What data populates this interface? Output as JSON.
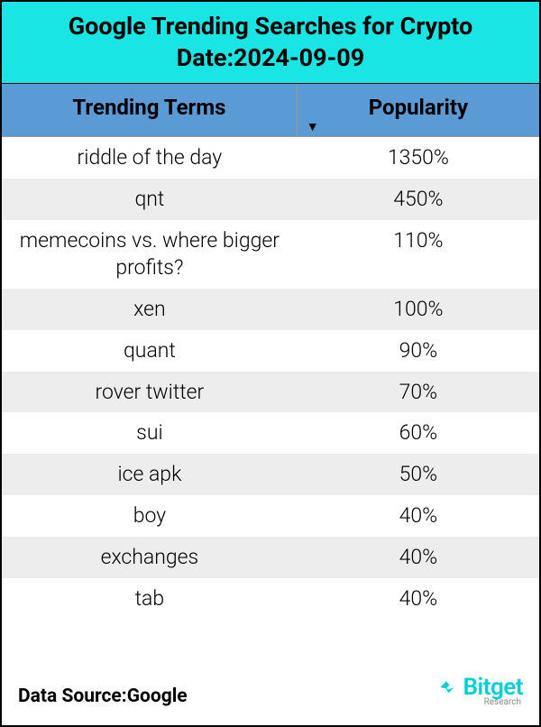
{
  "title": {
    "line1": "Google Trending Searches for Crypto",
    "line2": "Date:2024-09-09"
  },
  "colors": {
    "title_bg": "#1ae5e5",
    "header_bg": "#5b9bd5",
    "row_even_bg": "#ffffff",
    "row_odd_bg": "#ededed",
    "logo_color": "#00cfd6",
    "border": "#000000"
  },
  "columns": {
    "terms": "Trending Terms",
    "popularity": "Popularity"
  },
  "sort": {
    "column": "popularity",
    "direction": "desc",
    "arrow": "▼"
  },
  "rows": [
    {
      "term": "riddle of the day",
      "popularity": "1350%"
    },
    {
      "term": "qnt",
      "popularity": "450%"
    },
    {
      "term": "memecoins vs. where bigger profits?",
      "popularity": "110%"
    },
    {
      "term": "xen",
      "popularity": "100%"
    },
    {
      "term": "quant",
      "popularity": "90%"
    },
    {
      "term": "rover twitter",
      "popularity": "70%"
    },
    {
      "term": "sui",
      "popularity": "60%"
    },
    {
      "term": "ice apk",
      "popularity": "50%"
    },
    {
      "term": "boy",
      "popularity": "40%"
    },
    {
      "term": "exchanges",
      "popularity": "40%"
    },
    {
      "term": "tab",
      "popularity": "40%"
    }
  ],
  "footer": {
    "source": "Data Source:Google",
    "logo_text": "Bitget",
    "logo_sub": "Research"
  },
  "typography": {
    "title_fontsize": 27,
    "header_fontsize": 24,
    "cell_fontsize": 23,
    "source_fontsize": 21
  }
}
